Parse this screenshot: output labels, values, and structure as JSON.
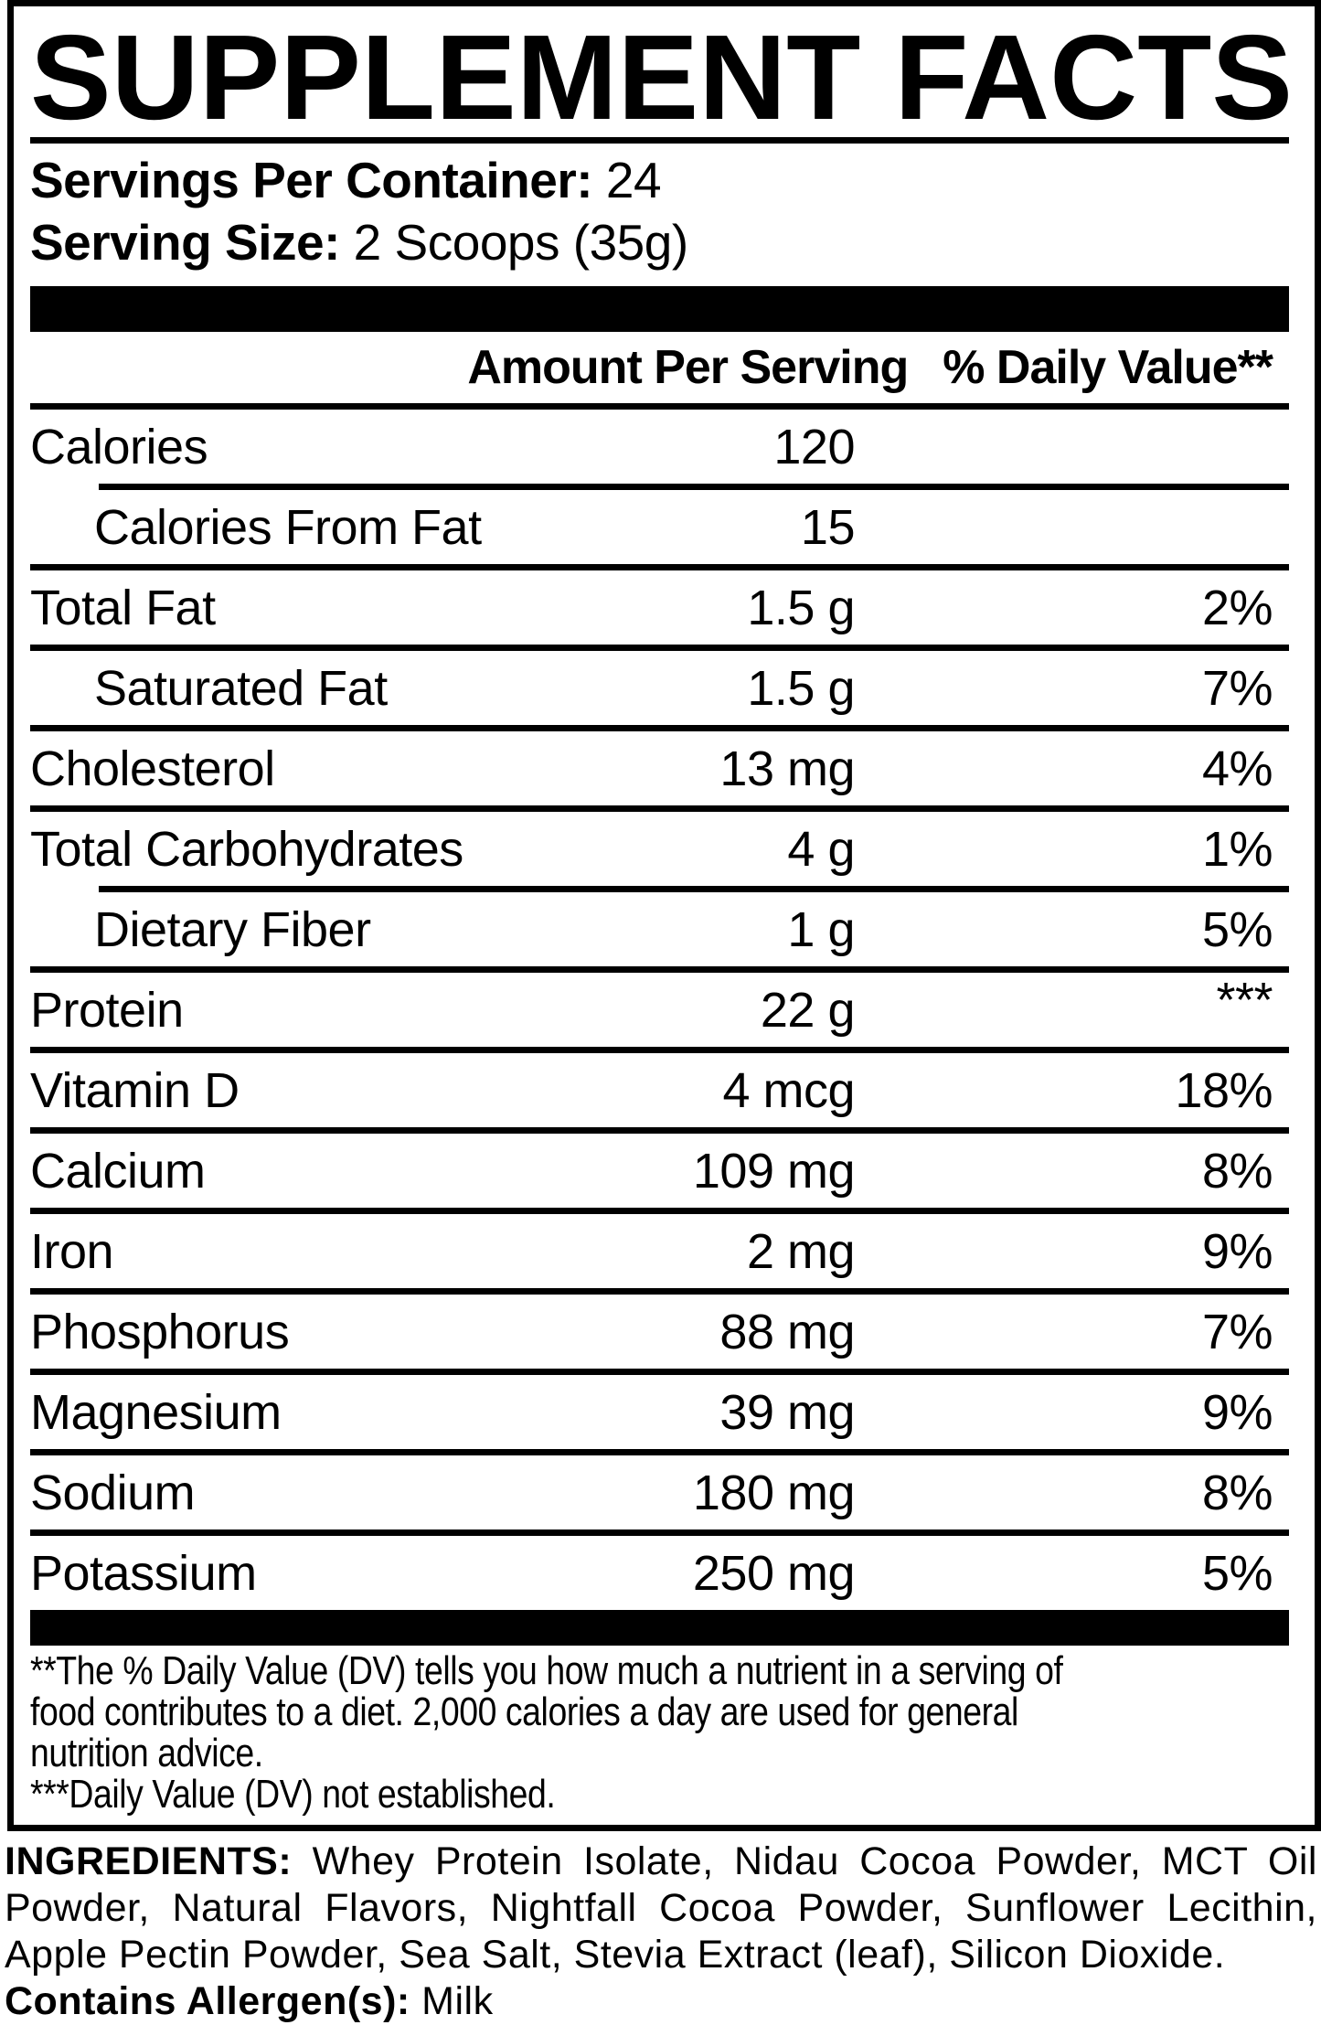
{
  "colors": {
    "text": "#000000",
    "background": "#ffffff"
  },
  "title": "SUPPLEMENT FACTS",
  "serving_info": {
    "servings_per_container": {
      "label": "Servings Per Container:",
      "value": "24"
    },
    "serving_size": {
      "label": "Serving Size:",
      "value": "2 Scoops (35g)"
    }
  },
  "table": {
    "header": {
      "amount_col": "Amount Per Serving",
      "dv_col": "% Daily Value**"
    },
    "rows": [
      {
        "label": "Calories",
        "amount": "120",
        "dv": "",
        "indent": false,
        "divider_above": null,
        "dv_raised": false
      },
      {
        "label": "Calories From Fat",
        "amount": "15",
        "dv": "",
        "indent": true,
        "divider_above": "indent",
        "dv_raised": false
      },
      {
        "label": "Total Fat",
        "amount": "1.5 g",
        "dv": "2%",
        "indent": false,
        "divider_above": "full",
        "dv_raised": false
      },
      {
        "label": "Saturated Fat",
        "amount": "1.5 g",
        "dv": "7%",
        "indent": true,
        "divider_above": "full",
        "dv_raised": false
      },
      {
        "label": "Cholesterol",
        "amount": "13 mg",
        "dv": "4%",
        "indent": false,
        "divider_above": "full",
        "dv_raised": false
      },
      {
        "label": "Total Carbohydrates",
        "amount": "4 g",
        "dv": "1%",
        "indent": false,
        "divider_above": "full",
        "dv_raised": false
      },
      {
        "label": "Dietary Fiber",
        "amount": "1 g",
        "dv": "5%",
        "indent": true,
        "divider_above": "indent",
        "dv_raised": false
      },
      {
        "label": "Protein",
        "amount": "22 g",
        "dv": "***",
        "indent": false,
        "divider_above": "full",
        "dv_raised": true
      },
      {
        "label": "Vitamin D",
        "amount": "4 mcg",
        "dv": "18%",
        "indent": false,
        "divider_above": "full",
        "dv_raised": false
      },
      {
        "label": "Calcium",
        "amount": "109 mg",
        "dv": "8%",
        "indent": false,
        "divider_above": "full",
        "dv_raised": false
      },
      {
        "label": "Iron",
        "amount": "2 mg",
        "dv": "9%",
        "indent": false,
        "divider_above": "full",
        "dv_raised": false
      },
      {
        "label": "Phosphorus",
        "amount": "88 mg",
        "dv": "7%",
        "indent": false,
        "divider_above": "full",
        "dv_raised": false
      },
      {
        "label": "Magnesium",
        "amount": "39 mg",
        "dv": "9%",
        "indent": false,
        "divider_above": "full",
        "dv_raised": false
      },
      {
        "label": "Sodium",
        "amount": "180 mg",
        "dv": "8%",
        "indent": false,
        "divider_above": "full",
        "dv_raised": false
      },
      {
        "label": "Potassium",
        "amount": "250 mg",
        "dv": "5%",
        "indent": false,
        "divider_above": "full",
        "dv_raised": false
      }
    ]
  },
  "footnote": {
    "lines": [
      "**The % Daily Value (DV) tells you how much a nutrient in a serving of",
      "food contributes to a diet. 2,000 calories a day are used for general",
      "nutrition advice.",
      "***Daily Value (DV) not established."
    ]
  },
  "ingredients": {
    "lines": [
      {
        "bold": "INGREDIENTS:",
        "text": " Whey Protein Isolate, Nidau Cocoa Powder, MCT Oil"
      },
      {
        "bold": "",
        "text": "Powder, Natural Flavors, Nightfall Cocoa Powder, Sunflower Lecithin,"
      },
      {
        "bold": "",
        "text": "Apple Pectin Powder, Sea Salt, Stevia Extract (leaf), Silicon Dioxide."
      },
      {
        "bold": "Contains Allergen(s):",
        "text": " Milk"
      }
    ]
  }
}
